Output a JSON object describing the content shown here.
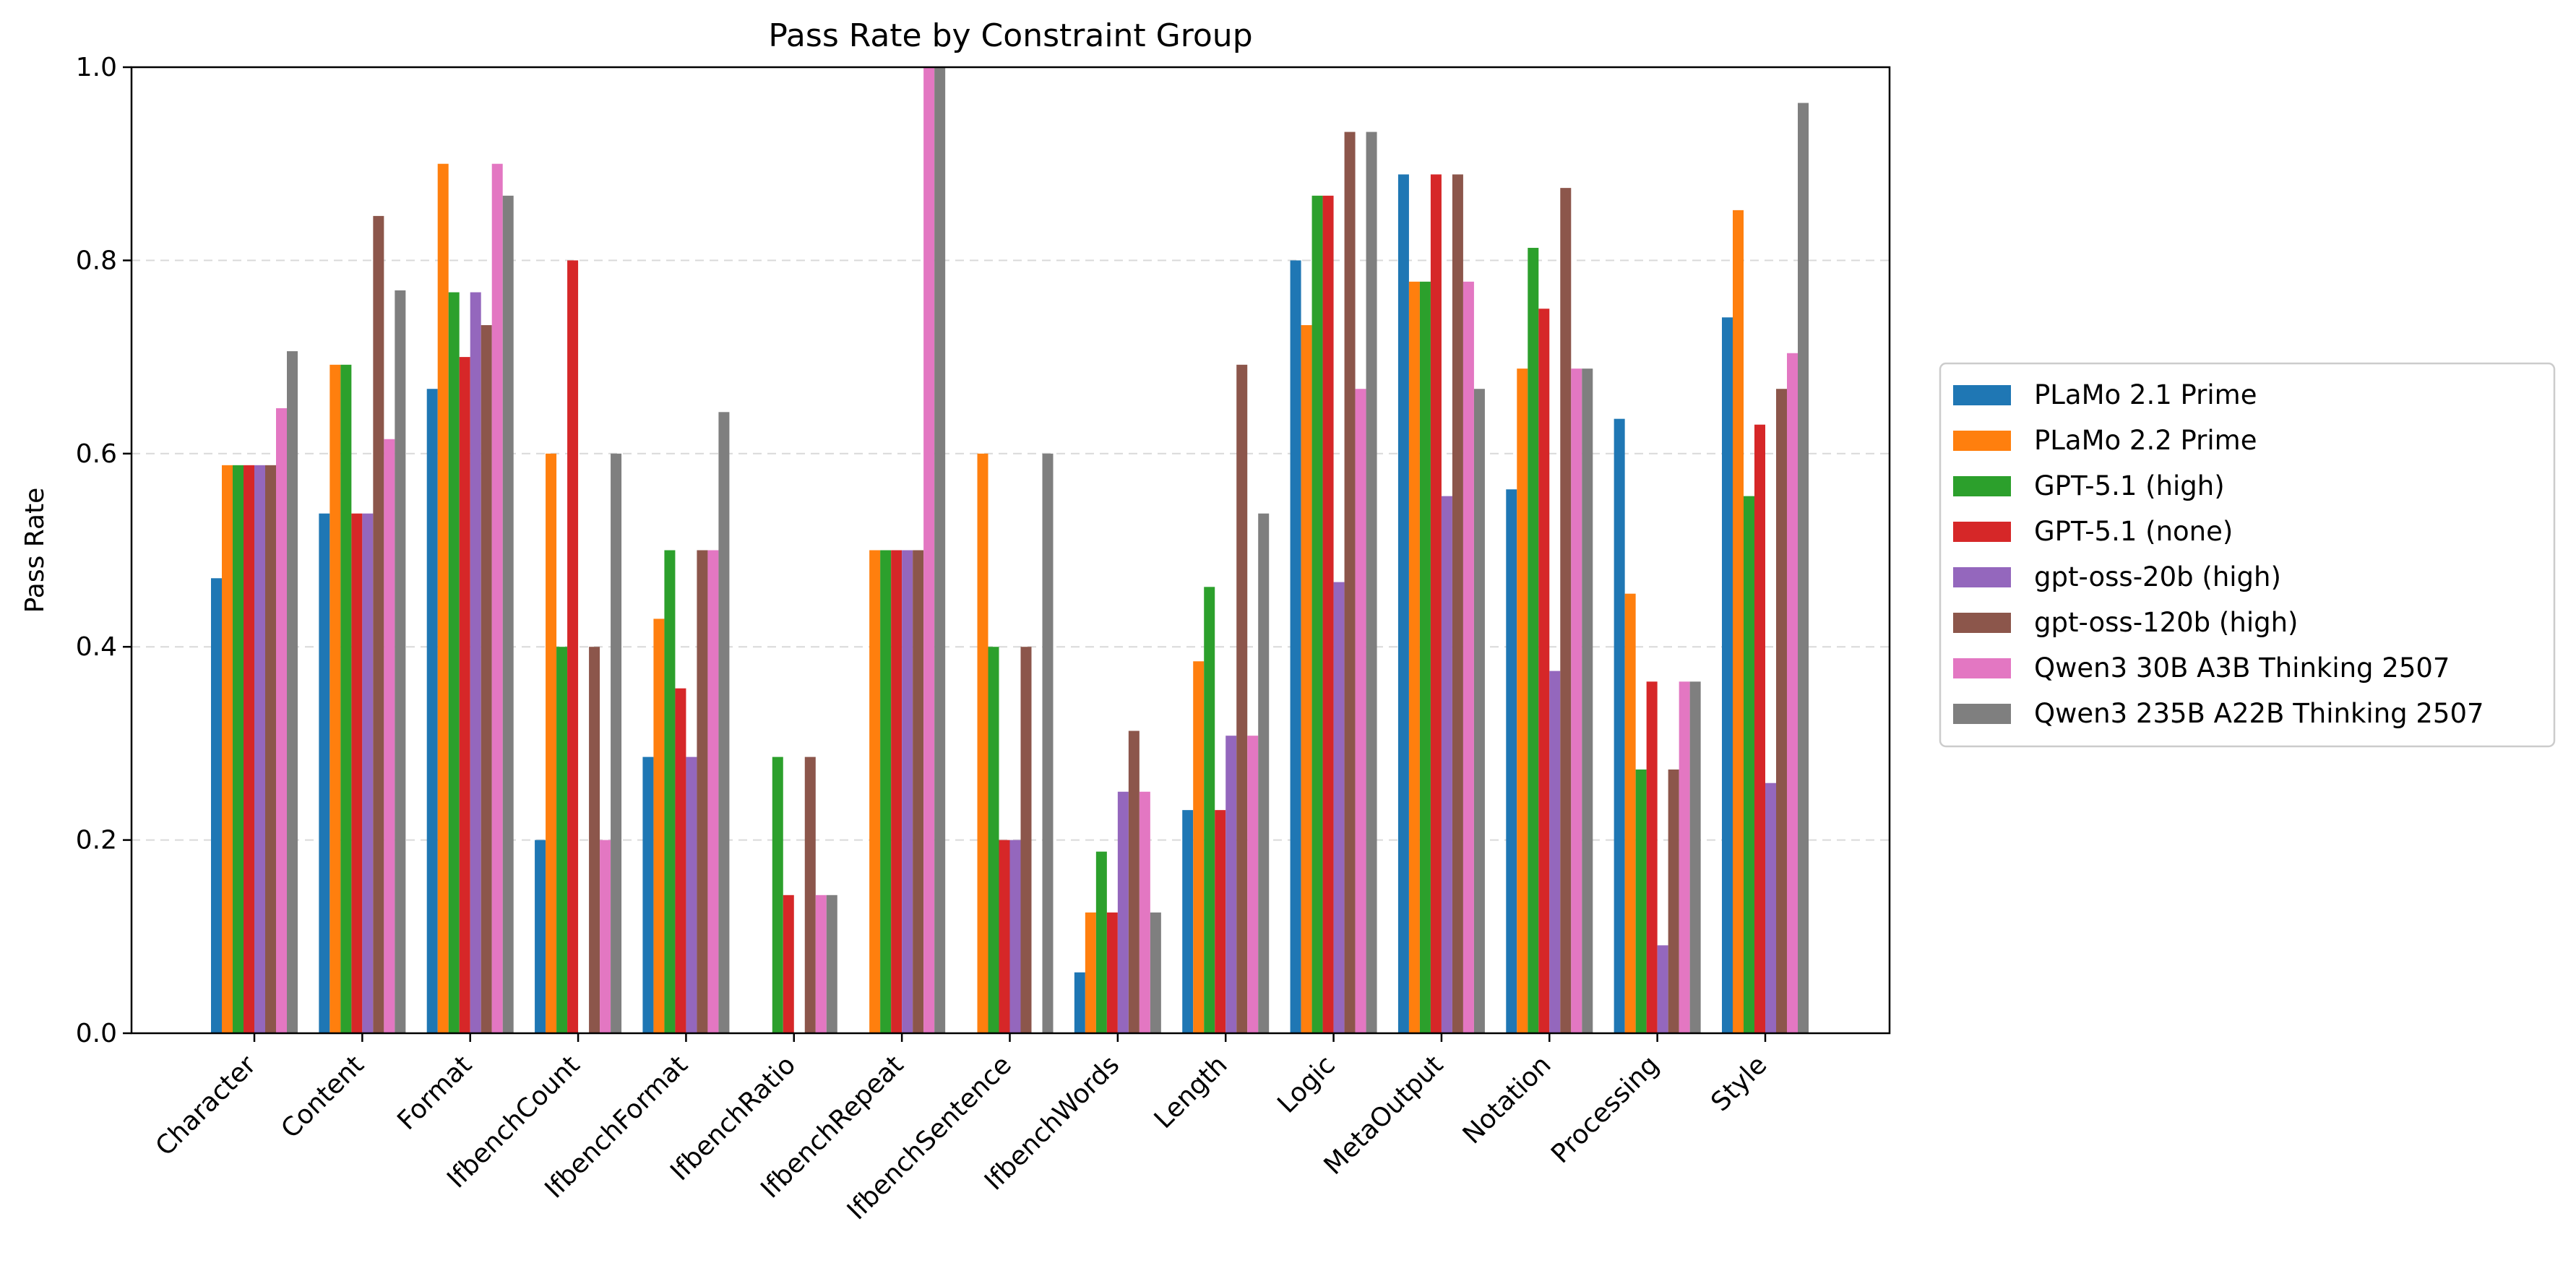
{
  "chart_data": {
    "type": "bar",
    "title": "Pass Rate by Constraint Group",
    "xlabel": "",
    "ylabel": "Pass Rate",
    "ylim": [
      0,
      1.0
    ],
    "yticks": [
      "0.0",
      "0.2",
      "0.4",
      "0.6",
      "0.8",
      "1.0"
    ],
    "grid": "y-dashed",
    "legend_position": "right",
    "categories": [
      "Character",
      "Content",
      "Format",
      "IfbenchCount",
      "IfbenchFormat",
      "IfbenchRatio",
      "IfbenchRepeat",
      "IfbenchSentence",
      "IfbenchWords",
      "Length",
      "Logic",
      "MetaOutput",
      "Notation",
      "Processing",
      "Style"
    ],
    "series": [
      {
        "name": "PLaMo 2.1 Prime",
        "color": "#1f77b4",
        "values": [
          0.471,
          0.538,
          0.667,
          0.2,
          0.286,
          0.0,
          0.0,
          0.0,
          0.063,
          0.231,
          0.8,
          0.889,
          0.563,
          0.636,
          0.741
        ]
      },
      {
        "name": "PLaMo 2.2 Prime",
        "color": "#ff7f0e",
        "values": [
          0.588,
          0.692,
          0.9,
          0.6,
          0.429,
          0.0,
          0.5,
          0.6,
          0.125,
          0.385,
          0.733,
          0.778,
          0.688,
          0.455,
          0.852
        ]
      },
      {
        "name": "GPT-5.1 (high)",
        "color": "#2ca02c",
        "values": [
          0.588,
          0.692,
          0.767,
          0.4,
          0.5,
          0.286,
          0.5,
          0.4,
          0.188,
          0.462,
          0.867,
          0.778,
          0.813,
          0.273,
          0.556
        ]
      },
      {
        "name": "GPT-5.1 (none)",
        "color": "#d62728",
        "values": [
          0.588,
          0.538,
          0.7,
          0.8,
          0.357,
          0.143,
          0.5,
          0.2,
          0.125,
          0.231,
          0.867,
          0.889,
          0.75,
          0.364,
          0.63
        ]
      },
      {
        "name": "gpt-oss-20b (high)",
        "color": "#9467bd",
        "values": [
          0.588,
          0.538,
          0.767,
          0.0,
          0.286,
          0.0,
          0.5,
          0.2,
          0.25,
          0.308,
          0.467,
          0.556,
          0.375,
          0.091,
          0.259
        ]
      },
      {
        "name": "gpt-oss-120b (high)",
        "color": "#8c564b",
        "values": [
          0.588,
          0.846,
          0.733,
          0.4,
          0.5,
          0.286,
          0.5,
          0.4,
          0.313,
          0.692,
          0.933,
          0.889,
          0.875,
          0.273,
          0.667
        ]
      },
      {
        "name": "Qwen3 30B A3B Thinking 2507",
        "color": "#e377c2",
        "values": [
          0.647,
          0.615,
          0.9,
          0.2,
          0.5,
          0.143,
          1.0,
          0.0,
          0.25,
          0.308,
          0.667,
          0.778,
          0.688,
          0.364,
          0.704
        ]
      },
      {
        "name": "Qwen3 235B A22B Thinking 2507",
        "color": "#7f7f7f",
        "values": [
          0.706,
          0.769,
          0.867,
          0.6,
          0.643,
          0.143,
          1.0,
          0.6,
          0.125,
          0.538,
          0.933,
          0.667,
          0.688,
          0.364,
          0.963
        ]
      }
    ]
  }
}
